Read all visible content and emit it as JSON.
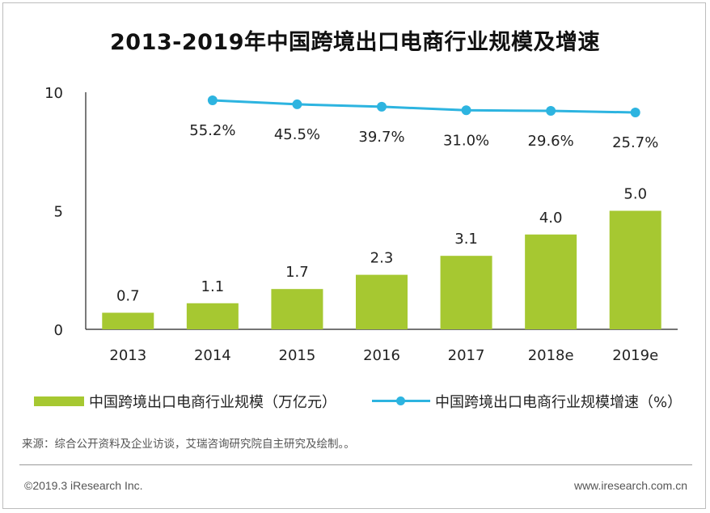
{
  "title": "2013-2019年中国跨境出口电商行业规模及增速",
  "chart_data": {
    "type": "bar",
    "categories": [
      "2013",
      "2014",
      "2015",
      "2016",
      "2017",
      "2018e",
      "2019e"
    ],
    "ylim": [
      0,
      10
    ],
    "yticks": [
      "0",
      "5",
      "10"
    ],
    "series": [
      {
        "name": "中国跨境出口电商行业规模（万亿元）",
        "type": "bar",
        "values": [
          0.7,
          1.1,
          1.7,
          2.3,
          3.1,
          4.0,
          5.0
        ],
        "labels": [
          "0.7",
          "1.1",
          "1.7",
          "2.3",
          "3.1",
          "4.0",
          "5.0"
        ],
        "color": "#a6c831"
      },
      {
        "name": "中国跨境出口电商行业规模增速（%）",
        "type": "line",
        "values": [
          null,
          55.2,
          45.5,
          39.7,
          31.0,
          29.6,
          25.7
        ],
        "labels": [
          "",
          "55.2%",
          "45.5%",
          "39.7%",
          "31.0%",
          "29.6%",
          "25.7%"
        ],
        "color": "#2db4e0"
      }
    ],
    "grid": false,
    "legend_position": "bottom"
  },
  "legend": {
    "bar_label": "中国跨境出口电商行业规模（万亿元）",
    "line_label": "中国跨境出口电商行业规模增速（%）"
  },
  "source": "来源：综合公开资料及企业访谈，艾瑞咨询研究院自主研究及绘制。。",
  "footer": {
    "copyright": "©2019.3 iResearch Inc.",
    "site": "www.iresearch.com.cn"
  }
}
